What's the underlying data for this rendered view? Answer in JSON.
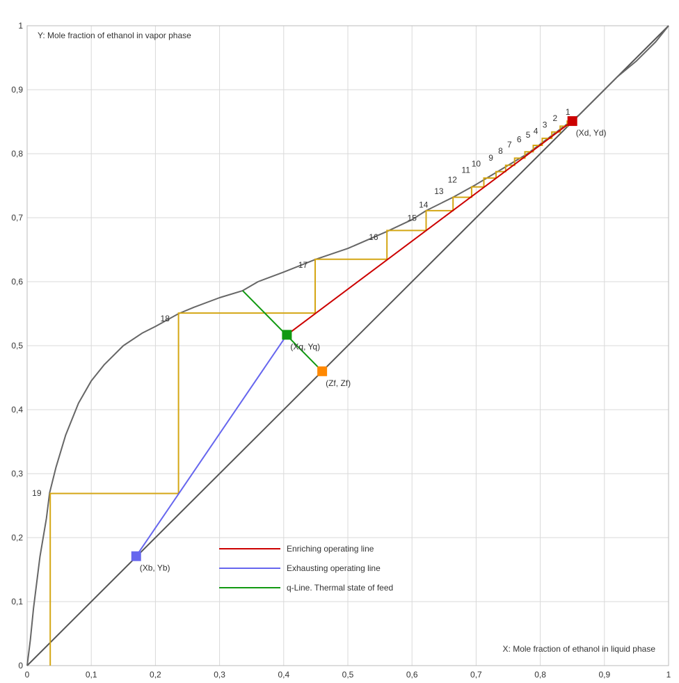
{
  "chart_data": {
    "type": "line",
    "xlabel": "X: Mole fraction of ethanol in liquid phase",
    "ylabel": "Y: Mole fraction of ethanol in vapor phase",
    "xlim": [
      0,
      1
    ],
    "ylim": [
      0,
      1
    ],
    "grid": true,
    "x_ticks": [
      "0",
      "0,1",
      "0,2",
      "0,3",
      "0,4",
      "0,5",
      "0,6",
      "0,7",
      "0,8",
      "0,9",
      "1"
    ],
    "y_ticks": [
      "0",
      "0,1",
      "0,2",
      "0,3",
      "0,4",
      "0,5",
      "0,6",
      "0,7",
      "0,8",
      "0,9",
      "1"
    ],
    "colors": {
      "equilibrium": "#666666",
      "diagonal": "#555555",
      "grid": "#d9d9d9",
      "stages": "#d4a614",
      "enriching": "#cc0000",
      "exhausting": "#6666ee",
      "qline": "#119911",
      "point_d": "#cc0000",
      "point_q": "#119911",
      "point_f": "#ff8800",
      "point_b": "#6666ee"
    },
    "equilibrium_curve": [
      [
        0,
        0
      ],
      [
        0.005,
        0.04
      ],
      [
        0.01,
        0.09
      ],
      [
        0.02,
        0.17
      ],
      [
        0.03,
        0.23
      ],
      [
        0.035,
        0.27
      ],
      [
        0.045,
        0.31
      ],
      [
        0.06,
        0.36
      ],
      [
        0.08,
        0.41
      ],
      [
        0.1,
        0.445
      ],
      [
        0.12,
        0.47
      ],
      [
        0.15,
        0.5
      ],
      [
        0.18,
        0.52
      ],
      [
        0.2,
        0.53
      ],
      [
        0.236,
        0.55
      ],
      [
        0.26,
        0.56
      ],
      [
        0.3,
        0.575
      ],
      [
        0.336,
        0.586
      ],
      [
        0.36,
        0.6
      ],
      [
        0.4,
        0.615
      ],
      [
        0.45,
        0.635
      ],
      [
        0.5,
        0.652
      ],
      [
        0.56,
        0.678
      ],
      [
        0.6,
        0.697
      ],
      [
        0.622,
        0.711
      ],
      [
        0.664,
        0.732
      ],
      [
        0.7,
        0.752
      ],
      [
        0.74,
        0.776
      ],
      [
        0.78,
        0.8
      ],
      [
        0.82,
        0.83
      ],
      [
        0.86,
        0.86
      ],
      [
        0.894,
        0.894
      ],
      [
        0.92,
        0.92
      ],
      [
        0.95,
        0.945
      ],
      [
        0.98,
        0.975
      ],
      [
        1,
        1
      ]
    ],
    "diagonal": [
      [
        0,
        0
      ],
      [
        1,
        1
      ]
    ],
    "series": [
      {
        "name": "Enriching operating line",
        "color": "#cc0000",
        "points": [
          [
            0.405,
            0.517
          ],
          [
            0.85,
            0.851
          ]
        ]
      },
      {
        "name": "Exhausting operating line",
        "color": "#6666ee",
        "points": [
          [
            0.17,
            0.171
          ],
          [
            0.405,
            0.517
          ]
        ]
      },
      {
        "name": "q-Line. Thermal state of feed",
        "color": "#119911",
        "points": [
          [
            0.336,
            0.586
          ],
          [
            0.46,
            0.46
          ]
        ]
      }
    ],
    "points": [
      {
        "label": "(Xd, Yd)",
        "x": 0.85,
        "y": 0.851,
        "color": "#cc0000"
      },
      {
        "label": "(Xq, Yq)",
        "x": 0.405,
        "y": 0.517,
        "color": "#119911"
      },
      {
        "label": "(Zf, Zf)",
        "x": 0.46,
        "y": 0.46,
        "color": "#ff8800"
      },
      {
        "label": "(Xb, Yb)",
        "x": 0.17,
        "y": 0.171,
        "color": "#6666ee"
      }
    ],
    "stages": [
      {
        "label": "1",
        "x": 0.842,
        "y": 0.851
      },
      {
        "label": "2",
        "x": 0.831,
        "y": 0.843
      },
      {
        "label": "3",
        "x": 0.818,
        "y": 0.834
      },
      {
        "label": "4",
        "x": 0.803,
        "y": 0.824
      },
      {
        "label": "5",
        "x": 0.789,
        "y": 0.813
      },
      {
        "label": "6",
        "x": 0.776,
        "y": 0.803
      },
      {
        "label": "7",
        "x": 0.76,
        "y": 0.793
      },
      {
        "label": "8",
        "x": 0.746,
        "y": 0.782
      },
      {
        "label": "9",
        "x": 0.731,
        "y": 0.772
      },
      {
        "label": "10",
        "x": 0.712,
        "y": 0.762
      },
      {
        "label": "11",
        "x": 0.693,
        "y": 0.748
      },
      {
        "label": "12",
        "x": 0.664,
        "y": 0.732
      },
      {
        "label": "13",
        "x": 0.622,
        "y": 0.711
      },
      {
        "label": "14",
        "x": 0.561,
        "y": 0.68
      },
      {
        "label": "15",
        "x": 0.449,
        "y": 0.635
      },
      {
        "label": "16",
        "x": 0.236,
        "y": 0.551
      },
      {
        "label": "17",
        "x": 0.036,
        "y": 0.269
      },
      {
        "label": "18",
        "x": 0.0,
        "y": 0.0
      },
      {
        "label": "19",
        "x": 0.0,
        "y": 0.0
      }
    ],
    "stage_labels": [
      {
        "label": "1",
        "x": 0.843,
        "y": 0.861
      },
      {
        "label": "2",
        "x": 0.823,
        "y": 0.851
      },
      {
        "label": "3",
        "x": 0.807,
        "y": 0.841
      },
      {
        "label": "4",
        "x": 0.793,
        "y": 0.831
      },
      {
        "label": "5",
        "x": 0.781,
        "y": 0.825
      },
      {
        "label": "6",
        "x": 0.767,
        "y": 0.818
      },
      {
        "label": "7",
        "x": 0.752,
        "y": 0.81
      },
      {
        "label": "8",
        "x": 0.738,
        "y": 0.8
      },
      {
        "label": "9",
        "x": 0.723,
        "y": 0.789
      },
      {
        "label": "10",
        "x": 0.7,
        "y": 0.78
      },
      {
        "label": "11",
        "x": 0.684,
        "y": 0.77
      },
      {
        "label": "12",
        "x": 0.663,
        "y": 0.755
      },
      {
        "label": "13",
        "x": 0.642,
        "y": 0.737
      },
      {
        "label": "14",
        "x": 0.618,
        "y": 0.716
      },
      {
        "label": "15",
        "x": 0.6,
        "y": 0.695
      },
      {
        "label": "16",
        "x": 0.54,
        "y": 0.665
      },
      {
        "label": "17",
        "x": 0.43,
        "y": 0.622
      },
      {
        "label": "18",
        "x": 0.215,
        "y": 0.538
      },
      {
        "label": "19",
        "x": 0.015,
        "y": 0.265
      }
    ],
    "staircase": [
      [
        0.85,
        0.851
      ],
      [
        0.842,
        0.851
      ],
      [
        0.842,
        0.843
      ],
      [
        0.831,
        0.843
      ],
      [
        0.831,
        0.834
      ],
      [
        0.818,
        0.834
      ],
      [
        0.818,
        0.824
      ],
      [
        0.803,
        0.824
      ],
      [
        0.803,
        0.813
      ],
      [
        0.789,
        0.813
      ],
      [
        0.789,
        0.803
      ],
      [
        0.776,
        0.803
      ],
      [
        0.776,
        0.793
      ],
      [
        0.76,
        0.793
      ],
      [
        0.76,
        0.782
      ],
      [
        0.746,
        0.782
      ],
      [
        0.746,
        0.772
      ],
      [
        0.731,
        0.772
      ],
      [
        0.731,
        0.762
      ],
      [
        0.712,
        0.762
      ],
      [
        0.712,
        0.748
      ],
      [
        0.693,
        0.748
      ],
      [
        0.693,
        0.732
      ],
      [
        0.664,
        0.732
      ],
      [
        0.664,
        0.711
      ],
      [
        0.622,
        0.711
      ],
      [
        0.622,
        0.68
      ],
      [
        0.561,
        0.68
      ],
      [
        0.561,
        0.635
      ],
      [
        0.449,
        0.635
      ],
      [
        0.449,
        0.551
      ],
      [
        0.236,
        0.551
      ],
      [
        0.236,
        0.269
      ],
      [
        0.036,
        0.269
      ],
      [
        0.036,
        0.0
      ]
    ],
    "legend": [
      {
        "label": "Enriching operating line",
        "color": "#cc0000"
      },
      {
        "label": "Exhausting operating line",
        "color": "#6666ee"
      },
      {
        "label": "q-Line. Thermal state of feed",
        "color": "#119911"
      }
    ]
  }
}
